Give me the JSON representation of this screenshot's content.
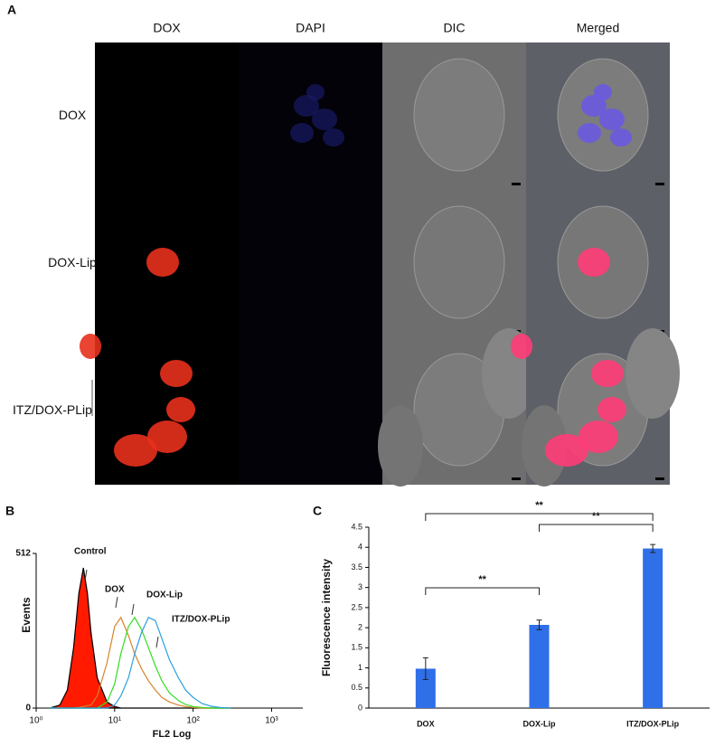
{
  "panel_labels": [
    "A",
    "B",
    "C"
  ],
  "panel_a": {
    "columns": [
      "DOX",
      "DAPI",
      "DIC",
      "Merged"
    ],
    "rows": [
      "DOX",
      "DOX-Lip",
      "ITZ/DOX-PLip"
    ]
  },
  "chart_data": [
    {
      "type": "line",
      "x_label": "FL2 Log",
      "y_label": "Events",
      "xscale": "log",
      "x": [
        1.5,
        2,
        2.5,
        3,
        3.5,
        4,
        4.5,
        5,
        6,
        8,
        10,
        12,
        15,
        18,
        22,
        27,
        33,
        40,
        50,
        65,
        80,
        100,
        130,
        170,
        220,
        300
      ],
      "series": [
        {
          "name": "Control",
          "color": "#ff1a00",
          "fill": true,
          "values": [
            0,
            10,
            60,
            200,
            380,
            464,
            380,
            250,
            100,
            20,
            5,
            0,
            0,
            0,
            0,
            0,
            0,
            0,
            0,
            0,
            0,
            0,
            0,
            0,
            0,
            0
          ]
        },
        {
          "name": "DOX",
          "color": "#d9822b",
          "fill": false,
          "values": [
            0,
            0,
            0,
            0,
            2,
            5,
            8,
            10,
            40,
            150,
            270,
            300,
            240,
            180,
            130,
            90,
            60,
            35,
            20,
            10,
            5,
            2,
            0,
            0,
            0,
            0
          ]
        },
        {
          "name": "DOX-Lip",
          "color": "#33dd22",
          "fill": false,
          "values": [
            0,
            0,
            0,
            0,
            0,
            0,
            0,
            0,
            0,
            20,
            80,
            180,
            270,
            300,
            260,
            200,
            140,
            90,
            50,
            25,
            12,
            5,
            2,
            0,
            0,
            0
          ]
        },
        {
          "name": "ITZ/DOX-PLip",
          "color": "#2a9fe0",
          "fill": false,
          "values": [
            0,
            0,
            0,
            0,
            0,
            0,
            0,
            0,
            0,
            0,
            10,
            40,
            100,
            180,
            250,
            300,
            290,
            230,
            160,
            100,
            60,
            35,
            15,
            6,
            2,
            0
          ]
        }
      ],
      "xlim": [
        1,
        2500
      ],
      "xticks": [
        {
          "value": 1,
          "label": "10⁰"
        },
        {
          "value": 10,
          "label": "10¹"
        },
        {
          "value": 100,
          "label": "10²"
        },
        {
          "value": 1000,
          "label": "10³"
        }
      ],
      "ylim": [
        0,
        512
      ],
      "yticks": [
        0,
        512
      ]
    },
    {
      "type": "bar",
      "y_label": "Fluorescence intensity",
      "categories": [
        "DOX",
        "DOX-Lip",
        "ITZ/DOX-PLip"
      ],
      "values": [
        0.98,
        2.07,
        3.97
      ],
      "errors": [
        0.27,
        0.12,
        0.1
      ],
      "color": "#2f6fe8",
      "ylim": [
        0,
        4.5
      ],
      "yticks": [
        0,
        0.5,
        1,
        1.5,
        2,
        2.5,
        3,
        3.5,
        4,
        4.5
      ],
      "comparisons": [
        {
          "between": [
            "DOX",
            "DOX-Lip"
          ],
          "label": "**"
        },
        {
          "between": [
            "DOX-Lip",
            "ITZ/DOX-PLip"
          ],
          "label": "**"
        },
        {
          "between": [
            "DOX",
            "ITZ/DOX-PLip"
          ],
          "label": "**"
        }
      ]
    }
  ]
}
